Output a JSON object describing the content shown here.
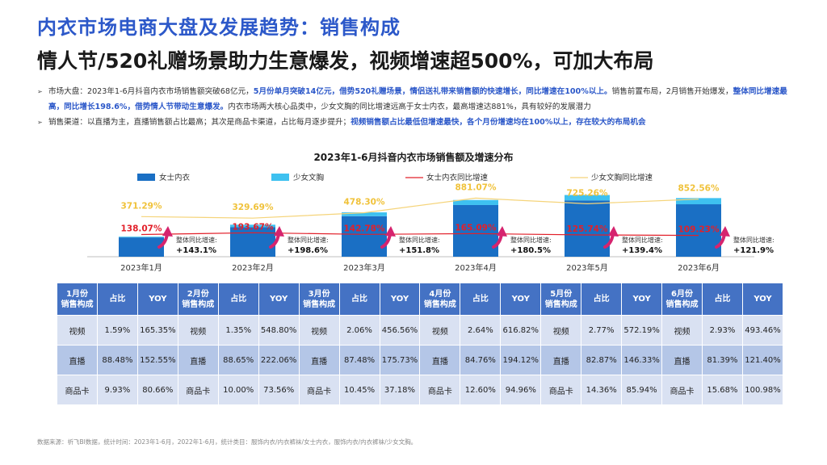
{
  "header": {
    "title": "内衣市场电商大盘及发展趋势：销售构成",
    "subtitle": "情人节/520礼赠场景助力生意爆发，视频增速超500%，可加大布局"
  },
  "bullets": {
    "b1_p1": "市场大盘：2023年1-6月抖音内衣市场销售额突破68亿元，",
    "b1_h1": "5月份单月突破14亿元，借势520礼赠场景，情侣送礼带来销售额的快速增长，同比增速在100%以上。",
    "b1_p2": "销售前置布局，2月销售开始爆发，",
    "b1_h2": "整体同比增速最高，同比增长198.6%，借势情人节带动生意爆发。",
    "b1_p3": "内衣市场两大核心品类中，少女文胸的同比增速远高于女士内衣，最高增速达881%，具有较好的发展潜力",
    "b2_p1": "销售渠道：以直播为主，直播销售额占比最高；其次是商品卡渠道，占比每月逐步提升；",
    "b2_h1": "视频销售额占比最低但增速最快，各个月份增速均在100%以上，存在较大的布局机会"
  },
  "icons": {
    "bullet": "arrow-right-icon",
    "up_arrow": "growth-arrow-icon"
  },
  "chart_data": {
    "type": "bar",
    "title": "2023年1-6月抖音内衣市场销售额及增速分布",
    "categories": [
      "2023年1月",
      "2023年2月",
      "2023年3月",
      "2023年4月",
      "2023年5月",
      "2023年6月"
    ],
    "series": [
      {
        "name": "女士内衣",
        "kind": "bar",
        "color": "#1a6fc4",
        "values": [
          5.0,
          7.7,
          10.5,
          13.4,
          14.6,
          13.6
        ]
      },
      {
        "name": "少女文胸",
        "kind": "bar",
        "color": "#3ec1f0",
        "values": [
          0.2,
          0.6,
          1.0,
          1.3,
          1.4,
          1.6
        ]
      },
      {
        "name": "女士内衣同比增速",
        "kind": "line",
        "color": "#e2202a",
        "values": [
          138.07,
          193.67,
          142.78,
          165.09,
          125.74,
          109.23
        ]
      },
      {
        "name": "少女文胸同比增速",
        "kind": "line",
        "color": "#f5d47a",
        "values": [
          371.29,
          329.69,
          478.3,
          881.07,
          725.26,
          852.56
        ]
      }
    ],
    "overall_label": "整体同比增速:",
    "overall_growth": [
      "+143.1%",
      "+198.6%",
      "+151.8%",
      "+180.5%",
      "+139.4%",
      "+121.9%"
    ],
    "bar_ylim": [
      0,
      18
    ],
    "growth_ylim": [
      0,
      1000
    ]
  },
  "table": {
    "months": [
      {
        "head": [
          "1月份",
          "销售构成"
        ],
        "rows": [
          [
            "视频",
            "1.59%",
            "165.35%"
          ],
          [
            "直播",
            "88.48%",
            "152.55%"
          ],
          [
            "商品卡",
            "9.93%",
            "80.66%"
          ]
        ]
      },
      {
        "head": [
          "2月份",
          "销售构成"
        ],
        "rows": [
          [
            "视频",
            "1.35%",
            "548.80%"
          ],
          [
            "直播",
            "88.65%",
            "222.06%"
          ],
          [
            "商品卡",
            "10.00%",
            "73.56%"
          ]
        ]
      },
      {
        "head": [
          "3月份",
          "销售构成"
        ],
        "rows": [
          [
            "视频",
            "2.06%",
            "456.56%"
          ],
          [
            "直播",
            "87.48%",
            "175.73%"
          ],
          [
            "商品卡",
            "10.45%",
            "37.18%"
          ]
        ]
      },
      {
        "head": [
          "4月份",
          "销售构成"
        ],
        "rows": [
          [
            "视频",
            "2.64%",
            "616.82%"
          ],
          [
            "直播",
            "84.76%",
            "194.12%"
          ],
          [
            "商品卡",
            "12.60%",
            "94.96%"
          ]
        ]
      },
      {
        "head": [
          "5月份",
          "销售构成"
        ],
        "rows": [
          [
            "视频",
            "2.77%",
            "572.19%"
          ],
          [
            "直播",
            "82.87%",
            "146.33%"
          ],
          [
            "商品卡",
            "14.36%",
            "85.94%"
          ]
        ]
      },
      {
        "head": [
          "6月份",
          "销售构成"
        ],
        "rows": [
          [
            "视频",
            "2.93%",
            "493.46%"
          ],
          [
            "直播",
            "81.39%",
            "121.40%"
          ],
          [
            "商品卡",
            "15.68%",
            "100.98%"
          ]
        ]
      }
    ],
    "share_header": "占比",
    "yoy_header": "YOY"
  },
  "footer": {
    "source": "数据来源：祈飞BI数据，统计时间：2023年1-6月，2022年1-6月，统计类目：服饰内衣/内衣裤袜/女士内衣，服饰内衣/内衣裤袜/少女文胸。"
  }
}
